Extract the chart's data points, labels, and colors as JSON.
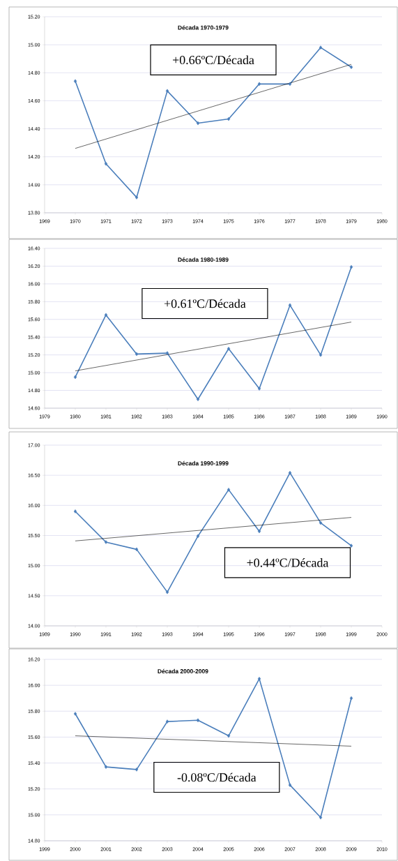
{
  "chart_data": [
    {
      "type": "line",
      "title": "Década 1970-1979",
      "annotations": [
        "+0.66ºC/Década"
      ],
      "x": [
        1970,
        1971,
        1972,
        1973,
        1974,
        1975,
        1976,
        1977,
        1978,
        1979
      ],
      "series": [
        {
          "color": "#4a7ebb",
          "values": [
            14.74,
            14.15,
            13.91,
            14.67,
            14.44,
            14.47,
            14.72,
            14.72,
            14.98,
            14.84
          ]
        },
        {
          "type": "line",
          "color": "#000000",
          "marker": "none",
          "x": [
            1970,
            1979
          ],
          "values": [
            14.26,
            14.86
          ]
        }
      ],
      "xlim": [
        1969,
        1980
      ],
      "xticks": [
        1969,
        1970,
        1971,
        1972,
        1973,
        1974,
        1975,
        1976,
        1977,
        1978,
        1979,
        1980
      ],
      "ylim": [
        13.8,
        15.2
      ],
      "yticks": [
        {
          "value": 13.8,
          "label": "13.80"
        },
        {
          "value": 14.0,
          "label": "14.00"
        },
        {
          "value": 14.2,
          "label": "14.20"
        },
        {
          "value": 14.4,
          "label": "14.40"
        },
        {
          "value": 14.6,
          "label": "14.60"
        },
        {
          "value": 14.8,
          "label": "14.80"
        },
        {
          "value": 15.0,
          "label": "15.00"
        },
        {
          "value": 15.2,
          "label": "15.20"
        }
      ],
      "grid": "y",
      "marker": "diamond"
    },
    {
      "type": "line",
      "title": "Década 1980-1989",
      "annotations": [
        "+0.61ºC/Década"
      ],
      "x": [
        1980,
        1981,
        1982,
        1983,
        1984,
        1985,
        1986,
        1987,
        1988,
        1989
      ],
      "series": [
        {
          "color": "#4a7ebb",
          "values": [
            14.95,
            15.65,
            15.21,
            15.22,
            14.7,
            15.27,
            14.82,
            15.76,
            15.2,
            16.19
          ]
        },
        {
          "type": "line",
          "color": "#000000",
          "marker": "none",
          "x": [
            1980,
            1989
          ],
          "values": [
            15.02,
            15.57
          ]
        }
      ],
      "xlim": [
        1979,
        1990
      ],
      "xticks": [
        1979,
        1980,
        1981,
        1982,
        1983,
        1984,
        1985,
        1986,
        1987,
        1988,
        1989,
        1990
      ],
      "ylim": [
        14.6,
        16.4
      ],
      "yticks": [
        {
          "value": 14.6,
          "label": "14.60"
        },
        {
          "value": 14.8,
          "label": "14.80"
        },
        {
          "value": 15.0,
          "label": "15.00"
        },
        {
          "value": 15.2,
          "label": "15.20"
        },
        {
          "value": 15.4,
          "label": "15.40"
        },
        {
          "value": 15.6,
          "label": "15.60"
        },
        {
          "value": 15.8,
          "label": "15.80"
        },
        {
          "value": 16.0,
          "label": "16.00"
        },
        {
          "value": 16.2,
          "label": "16.20"
        },
        {
          "value": 16.4,
          "label": "16.40"
        }
      ],
      "grid": "y",
      "marker": "diamond"
    },
    {
      "type": "line",
      "title": "Década 1990-1999",
      "annotations": [
        "+0.44ºC/Década"
      ],
      "x": [
        1990,
        1991,
        1992,
        1993,
        1994,
        1995,
        1996,
        1997,
        1998,
        1999
      ],
      "series": [
        {
          "color": "#4a7ebb",
          "values": [
            15.9,
            15.39,
            15.27,
            14.56,
            15.49,
            16.26,
            15.57,
            16.54,
            15.71,
            15.33
          ]
        },
        {
          "type": "line",
          "color": "#000000",
          "marker": "none",
          "x": [
            1990,
            1999
          ],
          "values": [
            15.41,
            15.8
          ]
        }
      ],
      "xlim": [
        1989,
        2000
      ],
      "xticks": [
        1989,
        1990,
        1991,
        1992,
        1993,
        1994,
        1995,
        1996,
        1997,
        1998,
        1999,
        2000
      ],
      "ylim": [
        14.0,
        17.0
      ],
      "yticks": [
        {
          "value": 14.0,
          "label": "14.00"
        },
        {
          "value": 14.5,
          "label": "14.50"
        },
        {
          "value": 15.0,
          "label": "15.00"
        },
        {
          "value": 15.5,
          "label": "15.50"
        },
        {
          "value": 16.0,
          "label": "16.00"
        },
        {
          "value": 16.5,
          "label": "16.50"
        },
        {
          "value": 17.0,
          "label": "17.00"
        }
      ],
      "grid": "y",
      "marker": "diamond"
    },
    {
      "type": "line",
      "title": "Década 2000-2009",
      "annotations": [
        "-0.08ºC/Década"
      ],
      "x": [
        2000,
        2001,
        2002,
        2003,
        2004,
        2005,
        2006,
        2007,
        2008,
        2009
      ],
      "series": [
        {
          "color": "#4a7ebb",
          "values": [
            15.78,
            15.37,
            15.35,
            15.72,
            15.73,
            15.61,
            16.05,
            15.23,
            14.98,
            15.9
          ]
        },
        {
          "type": "line",
          "color": "#000000",
          "marker": "none",
          "x": [
            2000,
            2009
          ],
          "values": [
            15.61,
            15.53
          ]
        }
      ],
      "xlim": [
        1999,
        2010
      ],
      "xticks": [
        1999,
        2000,
        2001,
        2002,
        2003,
        2004,
        2005,
        2006,
        2007,
        2008,
        2009,
        2010
      ],
      "ylim": [
        14.8,
        16.2
      ],
      "yticks": [
        {
          "value": 14.8,
          "label": "14.80"
        },
        {
          "value": 15.0,
          "label": "15.00"
        },
        {
          "value": 15.2,
          "label": "15.20"
        },
        {
          "value": 15.4,
          "label": "15.40"
        },
        {
          "value": 15.6,
          "label": "15.60"
        },
        {
          "value": 15.8,
          "label": "15.80"
        },
        {
          "value": 16.0,
          "label": "16.00"
        },
        {
          "value": 16.2,
          "label": "16.20"
        }
      ],
      "grid": "y",
      "marker": "diamond"
    }
  ]
}
